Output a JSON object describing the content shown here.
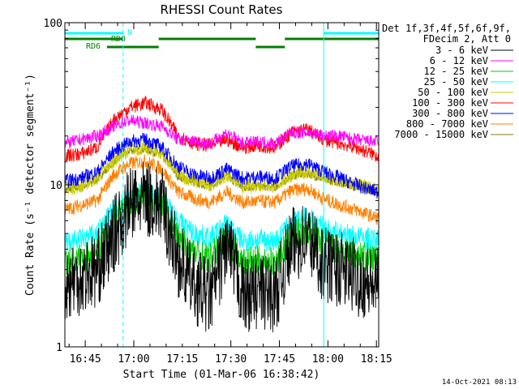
{
  "chart_data": {
    "type": "line",
    "title": "RHESSI Count Rates",
    "xlabel": "Start Time (01-Mar-06 16:38:42)",
    "ylabel": "Count Rate (s⁻¹ detector segment⁻¹)",
    "yscale": "log",
    "ylim": [
      1,
      100
    ],
    "y_ticks": [
      {
        "value": 1,
        "label": "1"
      },
      {
        "value": 10,
        "label": "10"
      },
      {
        "value": 100,
        "label": "100"
      }
    ],
    "x_ticks": [
      "16:45",
      "17:00",
      "17:15",
      "17:30",
      "17:45",
      "18:00",
      "18:15"
    ],
    "legend_header": [
      "Det 1f,3f,4f,5f,6f,9f,",
      "FDecim 2, Att 0"
    ],
    "legend_position": "outside-right",
    "series": [
      {
        "name": "3 - 6 keV",
        "color": "#000000",
        "x": [
          0,
          5,
          10,
          15,
          20,
          25,
          30,
          35,
          40,
          45,
          50,
          55,
          60,
          65,
          70,
          75,
          80,
          85,
          90,
          95,
          97
        ],
        "y": [
          2.5,
          2.7,
          3.0,
          4.8,
          7.5,
          8.2,
          7.5,
          3.5,
          2.4,
          2.0,
          4.3,
          2.1,
          2.2,
          2.1,
          4.2,
          4.8,
          3.2,
          3.0,
          2.7,
          2.4,
          2.4
        ]
      },
      {
        "name": "6 - 12 keV",
        "color": "#ff00ff",
        "x": [
          0,
          5,
          10,
          15,
          20,
          25,
          30,
          35,
          40,
          45,
          50,
          55,
          60,
          65,
          70,
          75,
          80,
          85,
          90,
          95,
          97
        ],
        "y": [
          18,
          19,
          20,
          23,
          25,
          24,
          23,
          19,
          18.5,
          18,
          21,
          18,
          18.5,
          18,
          21,
          21,
          20,
          20,
          19,
          18.5,
          18.5
        ]
      },
      {
        "name": "12 - 25 keV",
        "color": "#00cc00",
        "x": [
          0,
          5,
          10,
          15,
          20,
          25,
          30,
          35,
          40,
          45,
          50,
          55,
          60,
          65,
          70,
          75,
          80,
          85,
          90,
          95,
          97
        ],
        "y": [
          3.3,
          3.5,
          3.9,
          6.0,
          8.0,
          8.4,
          7.8,
          4.7,
          3.8,
          3.5,
          4.8,
          3.3,
          3.4,
          3.3,
          4.8,
          5.3,
          4.3,
          4.0,
          3.7,
          3.5,
          3.4
        ]
      },
      {
        "name": "25 - 50 keV",
        "color": "#00ffff",
        "x": [
          0,
          5,
          10,
          15,
          20,
          25,
          30,
          35,
          40,
          45,
          50,
          55,
          60,
          65,
          70,
          75,
          80,
          85,
          90,
          95,
          97
        ],
        "y": [
          4.4,
          4.6,
          5.0,
          7.0,
          8.6,
          9.0,
          8.5,
          6.0,
          5.0,
          4.7,
          5.8,
          4.5,
          4.6,
          4.5,
          5.8,
          6.3,
          5.4,
          5.0,
          4.8,
          4.6,
          4.5
        ]
      },
      {
        "name": "50 - 100 keV",
        "color": "#cccc00",
        "x": [
          0,
          5,
          10,
          15,
          20,
          25,
          30,
          35,
          40,
          45,
          50,
          55,
          60,
          65,
          70,
          75,
          80,
          85,
          90,
          95,
          97
        ],
        "y": [
          9.5,
          9.8,
          11.0,
          14.0,
          16.5,
          16.8,
          15.5,
          11.5,
          10.5,
          10.0,
          11.5,
          9.8,
          10.0,
          9.8,
          11.5,
          12.0,
          11.0,
          10.5,
          10.0,
          9.5,
          9.3
        ]
      },
      {
        "name": "100 - 300 keV",
        "color": "#ff0000",
        "x": [
          0,
          5,
          10,
          15,
          20,
          25,
          30,
          35,
          40,
          45,
          50,
          55,
          60,
          65,
          70,
          75,
          80,
          85,
          90,
          95,
          97
        ],
        "y": [
          15,
          15.5,
          17,
          25,
          30,
          32,
          29,
          20,
          18,
          17.5,
          19,
          17,
          17.5,
          17,
          21,
          22,
          19,
          18,
          17,
          15.5,
          15
        ]
      },
      {
        "name": "300 - 800 keV",
        "color": "#0000ff",
        "x": [
          0,
          5,
          10,
          15,
          20,
          25,
          30,
          35,
          40,
          45,
          50,
          55,
          60,
          65,
          70,
          75,
          80,
          85,
          90,
          95,
          97
        ],
        "y": [
          10.5,
          11.0,
          12.0,
          16.0,
          18.5,
          19.0,
          17.0,
          13.0,
          11.5,
          11.0,
          12.5,
          11.0,
          11.2,
          11.0,
          13.0,
          13.5,
          12.0,
          11.0,
          10.0,
          9.2,
          9.0
        ]
      },
      {
        "name": "800 - 7000 keV",
        "color": "#ff8000",
        "x": [
          0,
          5,
          10,
          15,
          20,
          25,
          30,
          35,
          40,
          45,
          50,
          55,
          60,
          65,
          70,
          75,
          80,
          85,
          90,
          95,
          97
        ],
        "y": [
          7.0,
          7.5,
          8.0,
          11.5,
          13.5,
          14.0,
          12.5,
          9.0,
          8.2,
          7.8,
          9.0,
          7.8,
          7.9,
          7.8,
          9.2,
          9.5,
          8.2,
          7.5,
          7.0,
          6.4,
          6.2
        ]
      },
      {
        "name": "7000 - 15000 keV",
        "color": "#808000",
        "x": [
          0,
          5,
          10,
          15,
          20,
          25,
          30,
          35,
          40,
          45,
          50,
          55,
          60,
          65,
          70,
          75,
          80,
          85,
          90,
          95,
          97
        ],
        "y": [
          9.3,
          9.6,
          10.8,
          13.8,
          16.3,
          16.6,
          15.3,
          11.3,
          10.3,
          9.8,
          11.3,
          9.6,
          9.8,
          9.6,
          11.3,
          11.8,
          10.8,
          10.3,
          9.8,
          9.3,
          9.1
        ]
      }
    ],
    "flag_bars": [
      {
        "label": "N",
        "color": "#00ffff",
        "intervals": [
          [
            0,
            18
          ],
          [
            80,
            97
          ]
        ]
      },
      {
        "label": "",
        "color": "#008000",
        "intervals": [
          [
            0,
            18
          ],
          [
            29,
            59
          ],
          [
            68,
            97
          ]
        ]
      },
      {
        "label": "RD6",
        "color": "#008000",
        "intervals": [
          [
            13,
            29
          ],
          [
            59,
            68
          ]
        ]
      }
    ],
    "flag_labels": [
      {
        "text": "N",
        "color": "#00ffff"
      },
      {
        "text": "RD0",
        "color": "#008000"
      },
      {
        "text": "RD6",
        "color": "#008000"
      }
    ],
    "vlines_solid": [
      0,
      80,
      97
    ],
    "vlines_dashed": [
      18,
      97
    ],
    "footer_date": "14-Oct-2021 08:13"
  }
}
